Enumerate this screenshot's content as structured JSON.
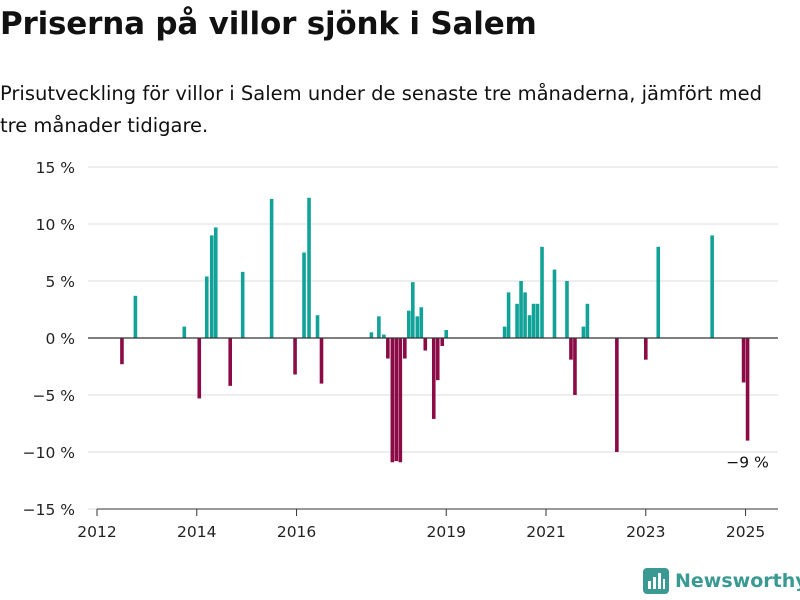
{
  "header": {
    "title": "Priserna på villor sjönk i Salem",
    "subtitle": "Prisutveckling för villor i Salem under de senaste tre månaderna, jämfört med tre månader tidigare."
  },
  "brand": {
    "name": "Newsworthy",
    "icon": "newsworthy-logo-icon"
  },
  "colors": {
    "positive": "#11a298",
    "negative": "#8a0b46",
    "grid": "#dcdcdc",
    "zero_line": "#333333"
  },
  "chart_data": {
    "type": "bar",
    "title": "",
    "xlabel": "",
    "ylabel": "",
    "ylim": [
      -15,
      15
    ],
    "y_ticks": [
      15,
      10,
      5,
      0,
      -5,
      -10,
      -15
    ],
    "y_tick_labels": [
      "15 %",
      "10 %",
      "5 %",
      "0 %",
      "−5 %",
      "−10 %",
      "−15 %"
    ],
    "x_ticks": [
      2012,
      2014,
      2016,
      2019,
      2021,
      2023,
      2025
    ],
    "x_tick_labels": [
      "2012",
      "2014",
      "2016",
      "2019",
      "2021",
      "2023",
      "2025"
    ],
    "xlim": [
      2012.0,
      2025.65
    ],
    "grid": true,
    "annotation": {
      "text": "−9 %",
      "date": 2025.04,
      "value": -9.0
    },
    "points": [
      {
        "date": 2012.5,
        "value": -2.3
      },
      {
        "date": 2012.77,
        "value": 3.7
      },
      {
        "date": 2013.75,
        "value": 1.0
      },
      {
        "date": 2014.05,
        "value": -5.3
      },
      {
        "date": 2014.2,
        "value": 5.4
      },
      {
        "date": 2014.3,
        "value": 9.0
      },
      {
        "date": 2014.38,
        "value": 9.7
      },
      {
        "date": 2014.67,
        "value": -4.2
      },
      {
        "date": 2014.92,
        "value": 5.8
      },
      {
        "date": 2015.5,
        "value": 12.2
      },
      {
        "date": 2015.97,
        "value": -3.2
      },
      {
        "date": 2016.15,
        "value": 7.5
      },
      {
        "date": 2016.25,
        "value": 12.3
      },
      {
        "date": 2016.42,
        "value": 2.0
      },
      {
        "date": 2016.5,
        "value": -4.0
      },
      {
        "date": 2017.5,
        "value": 0.5
      },
      {
        "date": 2017.65,
        "value": 1.9
      },
      {
        "date": 2017.75,
        "value": 0.3
      },
      {
        "date": 2017.83,
        "value": -1.8
      },
      {
        "date": 2017.92,
        "value": -10.9
      },
      {
        "date": 2018.0,
        "value": -10.8
      },
      {
        "date": 2018.08,
        "value": -10.9
      },
      {
        "date": 2018.17,
        "value": -1.8
      },
      {
        "date": 2018.25,
        "value": 2.4
      },
      {
        "date": 2018.33,
        "value": 4.9
      },
      {
        "date": 2018.42,
        "value": 1.9
      },
      {
        "date": 2018.5,
        "value": 2.7
      },
      {
        "date": 2018.58,
        "value": -1.1
      },
      {
        "date": 2018.75,
        "value": -7.1
      },
      {
        "date": 2018.83,
        "value": -3.7
      },
      {
        "date": 2018.92,
        "value": -0.7
      },
      {
        "date": 2019.0,
        "value": 0.7
      },
      {
        "date": 2020.17,
        "value": 1.0
      },
      {
        "date": 2020.25,
        "value": 4.0
      },
      {
        "date": 2020.42,
        "value": 3.0
      },
      {
        "date": 2020.5,
        "value": 5.0
      },
      {
        "date": 2020.58,
        "value": 4.0
      },
      {
        "date": 2020.67,
        "value": 2.0
      },
      {
        "date": 2020.75,
        "value": 3.0
      },
      {
        "date": 2020.83,
        "value": 3.0
      },
      {
        "date": 2020.92,
        "value": 8.0
      },
      {
        "date": 2021.17,
        "value": 6.0
      },
      {
        "date": 2021.42,
        "value": 5.0
      },
      {
        "date": 2021.5,
        "value": -1.9
      },
      {
        "date": 2021.58,
        "value": -5.0
      },
      {
        "date": 2021.75,
        "value": 1.0
      },
      {
        "date": 2021.83,
        "value": 3.0
      },
      {
        "date": 2022.42,
        "value": -10.0
      },
      {
        "date": 2023.0,
        "value": -1.9
      },
      {
        "date": 2023.25,
        "value": 8.0
      },
      {
        "date": 2024.33,
        "value": 9.0
      },
      {
        "date": 2024.96,
        "value": -3.9
      },
      {
        "date": 2025.04,
        "value": -9.0
      }
    ]
  }
}
